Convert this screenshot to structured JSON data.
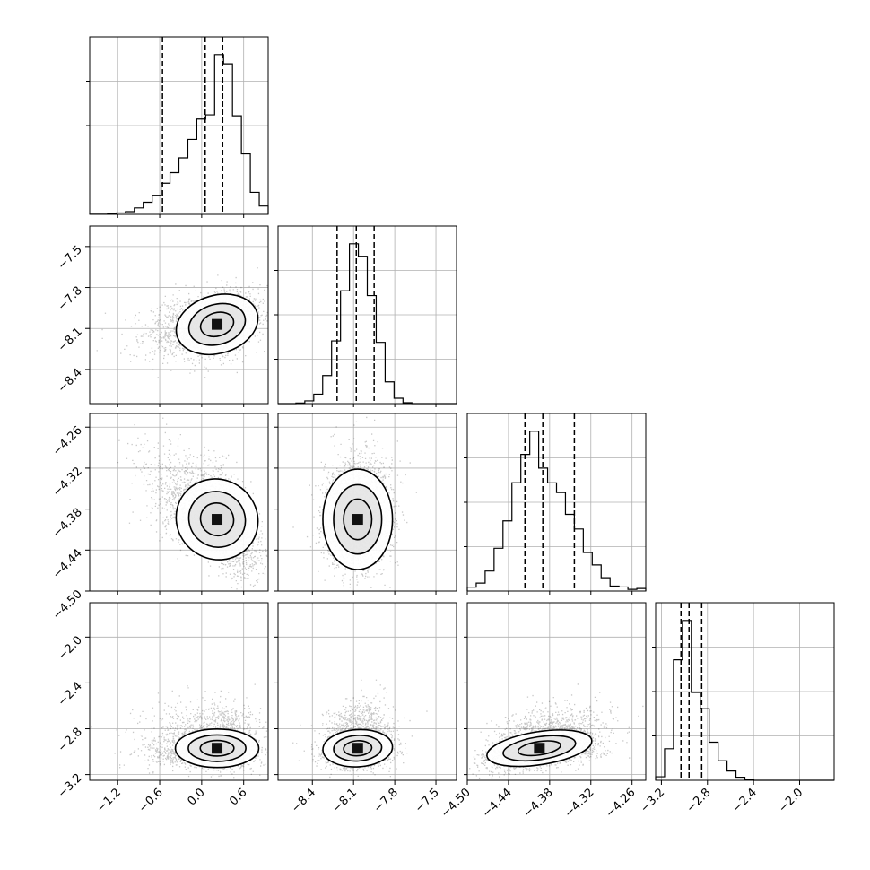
{
  "chart_data": {
    "type": "corner",
    "parameters": [
      {
        "xlim": [
          -1.6,
          0.95
        ],
        "ticks": [
          -1.2,
          -0.6,
          0.0,
          0.6
        ],
        "tick_labels": [
          "−1.2",
          "−0.6",
          "0.0",
          "0.6"
        ],
        "quantiles": [
          -0.56,
          0.05,
          0.3
        ],
        "center": 0.22,
        "spread": 0.27,
        "skew": -0.8
      },
      {
        "xlim": [
          -8.65,
          -7.35
        ],
        "ticks": [
          -8.4,
          -8.1,
          -7.8,
          -7.5
        ],
        "tick_labels": [
          "−8.4",
          "−8.1",
          "−7.8",
          "−7.5"
        ],
        "quantiles": [
          -8.22,
          -8.08,
          -7.95
        ],
        "center": -8.07,
        "spread": 0.115,
        "skew": 0.0
      },
      {
        "xlim": [
          -4.5,
          -4.24
        ],
        "ticks": [
          -4.5,
          -4.44,
          -4.38,
          -4.32,
          -4.26
        ],
        "tick_labels": [
          "−4.50",
          "−4.44",
          "−4.38",
          "−4.32",
          "−4.26"
        ],
        "quantiles": [
          -4.416,
          -4.39,
          -4.344
        ],
        "center": -4.395,
        "spread": 0.035,
        "skew": 0.35
      },
      {
        "xlim": [
          -3.25,
          -1.7
        ],
        "ticks": [
          -3.2,
          -2.8,
          -2.4,
          -2.0
        ],
        "tick_labels": [
          "−3.2",
          "−2.8",
          "−2.4",
          "−2.0"
        ],
        "quantiles": [
          -3.03,
          -2.96,
          -2.85
        ],
        "center": -2.97,
        "spread": 0.08,
        "skew": 1.2
      }
    ],
    "pairs": [
      {
        "row": 1,
        "col": 0,
        "correlation": 0.35
      },
      {
        "row": 2,
        "col": 0,
        "correlation": -0.6
      },
      {
        "row": 2,
        "col": 1,
        "correlation": 0.0
      },
      {
        "row": 3,
        "col": 0,
        "correlation": 0.0
      },
      {
        "row": 3,
        "col": 1,
        "correlation": 0.1
      },
      {
        "row": 3,
        "col": 2,
        "correlation": 0.4
      }
    ],
    "histogram": {
      "bins": 20,
      "style": "step",
      "quantile_lines": "dashed"
    },
    "scatter_color": "#000000",
    "contour_levels": 3,
    "grid": true
  }
}
